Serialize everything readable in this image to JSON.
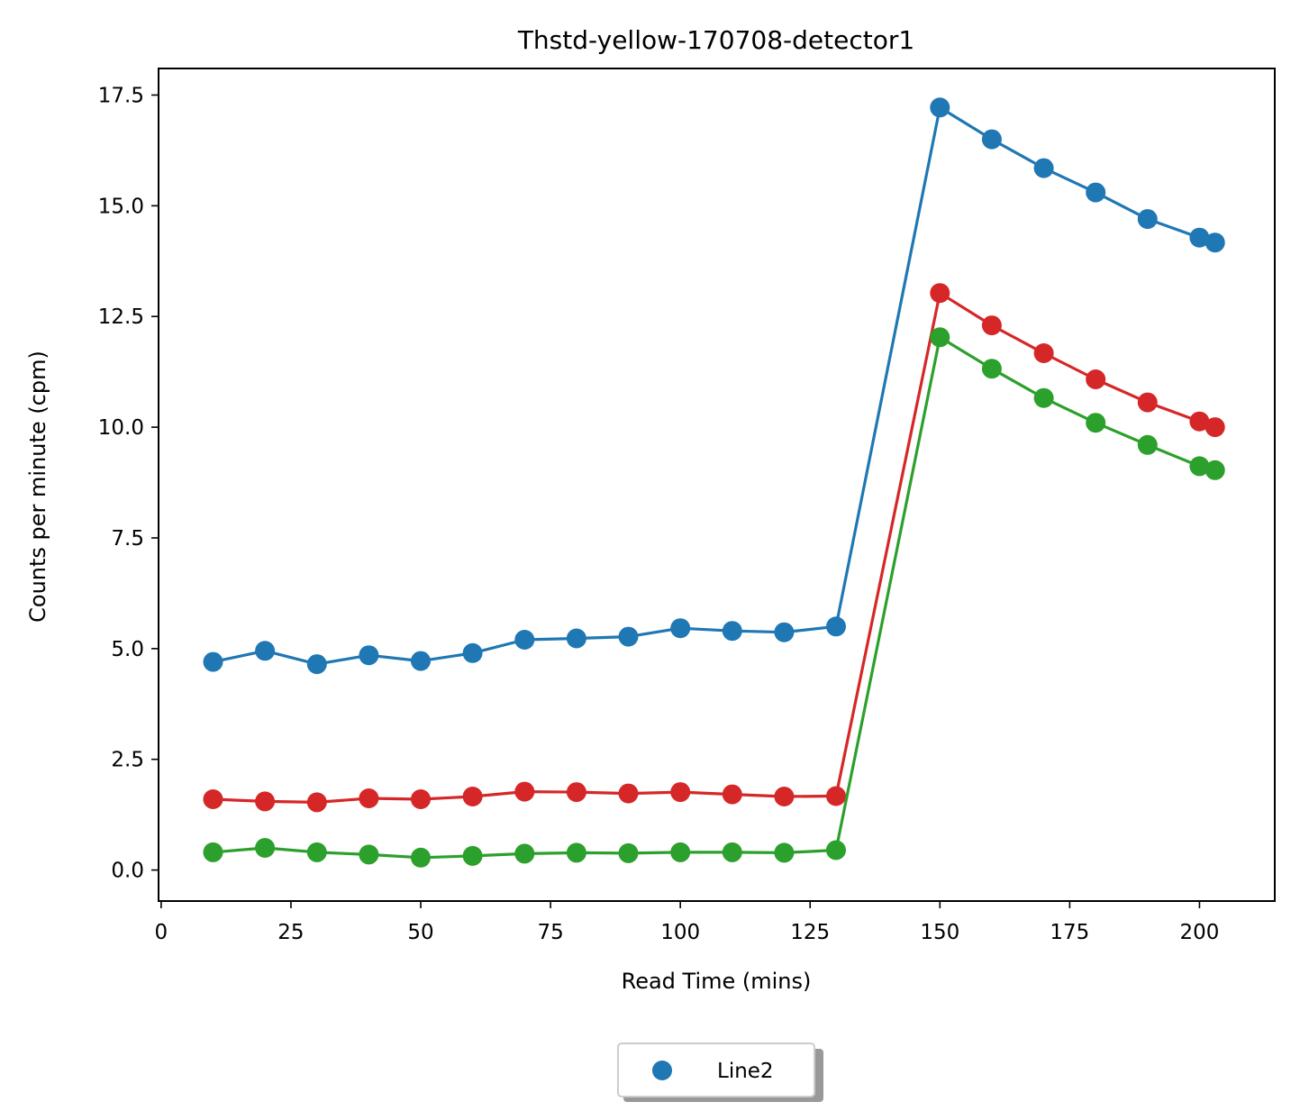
{
  "chart_data": {
    "type": "line",
    "title": "Thstd-yellow-170708-detector1",
    "xlabel": "Read Time (mins)",
    "ylabel": "Counts per minute (cpm)",
    "xlim": [
      -0.5,
      214.5
    ],
    "ylim": [
      -0.7,
      18.1
    ],
    "xticks": [
      0,
      25,
      50,
      75,
      100,
      125,
      150,
      175,
      200
    ],
    "yticks": [
      0.0,
      2.5,
      5.0,
      7.5,
      10.0,
      12.5,
      15.0,
      17.5
    ],
    "xtick_labels": [
      "0",
      "25",
      "50",
      "75",
      "100",
      "125",
      "150",
      "175",
      "200"
    ],
    "ytick_labels": [
      "0.0",
      "2.5",
      "5.0",
      "7.5",
      "10.0",
      "12.5",
      "15.0",
      "17.5"
    ],
    "x": [
      10,
      20,
      30,
      40,
      50,
      60,
      70,
      80,
      90,
      100,
      110,
      120,
      130,
      150,
      160,
      170,
      180,
      190,
      200,
      203
    ],
    "series": [
      {
        "color": "#1f77b4",
        "values": [
          4.7,
          4.95,
          4.65,
          4.85,
          4.72,
          4.9,
          5.2,
          5.23,
          5.27,
          5.46,
          5.4,
          5.37,
          5.5,
          17.22,
          16.5,
          15.85,
          15.3,
          14.7,
          14.28,
          14.17
        ]
      },
      {
        "color": "#d62728",
        "values": [
          1.6,
          1.55,
          1.53,
          1.62,
          1.6,
          1.66,
          1.77,
          1.76,
          1.73,
          1.76,
          1.71,
          1.66,
          1.67,
          13.03,
          12.3,
          11.67,
          11.08,
          10.56,
          10.13,
          10.0
        ]
      },
      {
        "color": "#2ca02c",
        "values": [
          0.4,
          0.5,
          0.4,
          0.35,
          0.28,
          0.32,
          0.37,
          0.39,
          0.38,
          0.4,
          0.4,
          0.39,
          0.45,
          12.03,
          11.32,
          10.66,
          10.1,
          9.6,
          9.12,
          9.03
        ]
      }
    ],
    "legend": {
      "placement": "bottom-center, below plot",
      "entries": [
        {
          "label": "Line2",
          "color": "#1f77b4",
          "marker": "circle"
        }
      ]
    },
    "grid": false
  }
}
